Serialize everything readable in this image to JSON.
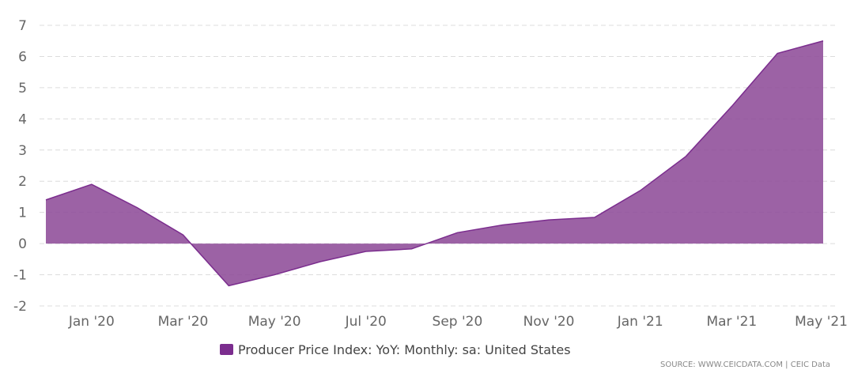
{
  "chart_data": {
    "type": "area",
    "x": [
      "Dec '19",
      "Jan '20",
      "Feb '20",
      "Mar '20",
      "Apr '20",
      "May '20",
      "Jun '20",
      "Jul '20",
      "Aug '20",
      "Sep '20",
      "Oct '20",
      "Nov '20",
      "Dec '20",
      "Jan '21",
      "Feb '21",
      "Mar '21",
      "Apr '21",
      "May '21"
    ],
    "x_tick_labels": [
      "Jan '20",
      "Mar '20",
      "May '20",
      "Jul '20",
      "Sep '20",
      "Nov '20",
      "Jan '21",
      "Mar '21",
      "May '21"
    ],
    "x_tick_indices": [
      1,
      3,
      5,
      7,
      9,
      11,
      13,
      15,
      17
    ],
    "series": [
      {
        "name": "Producer Price Index: YoY: Monthly: sa: United States",
        "values": [
          1.4,
          1.9,
          1.15,
          0.28,
          -1.35,
          -1.0,
          -0.58,
          -0.25,
          -0.17,
          0.35,
          0.6,
          0.76,
          0.84,
          1.7,
          2.8,
          4.4,
          6.1,
          6.5
        ]
      }
    ],
    "y_ticks": [
      7,
      6,
      5,
      4,
      3,
      2,
      1,
      0,
      -1,
      -2
    ],
    "ylim": [
      -2,
      7
    ],
    "grid": true,
    "legend_position": "bottom-center",
    "colors": {
      "fill": "#8e4c99",
      "stroke": "#7b2d8e",
      "legend_swatch": "#7b2d8e",
      "grid": "#dcdcdc"
    }
  },
  "source": "SOURCE: WWW.CEICDATA.COM | CEIC Data"
}
